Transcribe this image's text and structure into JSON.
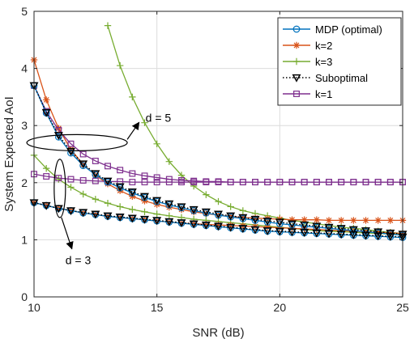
{
  "chart_data": {
    "type": "line",
    "title": "",
    "xlabel": "SNR (dB)",
    "ylabel": "System Expected AoI",
    "xlim": [
      10,
      25
    ],
    "ylim": [
      0,
      5
    ],
    "xticks": [
      10,
      15,
      20,
      25
    ],
    "yticks": [
      0,
      1,
      2,
      3,
      4,
      5
    ],
    "grid": true,
    "legend_position": "top-right",
    "x": [
      10,
      10.5,
      11,
      11.5,
      12,
      12.5,
      13,
      13.5,
      14,
      14.5,
      15,
      15.5,
      16,
      16.5,
      17,
      17.5,
      18,
      18.5,
      19,
      19.5,
      20,
      20.5,
      21,
      21.5,
      22,
      22.5,
      23,
      23.5,
      24,
      24.5,
      25
    ],
    "series": [
      {
        "name": "MDP (optimal)",
        "color": "#0072BD",
        "marker": "circle",
        "dash": "solid",
        "groups": [
          [
            3.7,
            3.22,
            2.8,
            2.52,
            2.3,
            2.14,
            2.01,
            1.91,
            1.82,
            1.74,
            1.67,
            1.61,
            1.56,
            1.51,
            1.47,
            1.43,
            1.4,
            1.37,
            1.34,
            1.31,
            1.28,
            1.26,
            1.24,
            1.22,
            1.2,
            1.18,
            1.16,
            1.14,
            1.12,
            1.1,
            1.08
          ],
          [
            1.65,
            1.6,
            1.55,
            1.51,
            1.47,
            1.44,
            1.41,
            1.39,
            1.37,
            1.35,
            1.33,
            1.31,
            1.29,
            1.27,
            1.25,
            1.23,
            1.21,
            1.19,
            1.17,
            1.15,
            1.14,
            1.13,
            1.12,
            1.11,
            1.1,
            1.09,
            1.08,
            1.07,
            1.06,
            1.05,
            1.04
          ]
        ]
      },
      {
        "name": "k=2",
        "color": "#D95319",
        "marker": "asterisk",
        "dash": "solid",
        "groups": [
          [
            4.15,
            3.45,
            2.95,
            2.58,
            2.32,
            2.13,
            1.98,
            1.86,
            1.76,
            1.68,
            1.62,
            1.57,
            1.53,
            1.49,
            1.46,
            1.43,
            1.41,
            1.39,
            1.38,
            1.37,
            1.36,
            1.35,
            1.35,
            1.35,
            1.34,
            1.34,
            1.34,
            1.34,
            1.34,
            1.34,
            1.34
          ],
          [
            1.65,
            1.6,
            1.55,
            1.51,
            1.47,
            1.44,
            1.41,
            1.39,
            1.37,
            1.35,
            1.33,
            1.31,
            1.29,
            1.28,
            1.27,
            1.26,
            1.25,
            1.24,
            1.23,
            1.22,
            1.21,
            1.2,
            1.19,
            1.18,
            1.17,
            1.16,
            1.15,
            1.14,
            1.13,
            1.12,
            1.11
          ]
        ]
      },
      {
        "name": "k=3",
        "color": "#77AC30",
        "marker": "plus",
        "dash": "solid",
        "groups": [
          [
            null,
            null,
            null,
            null,
            null,
            null,
            4.75,
            4.05,
            3.5,
            3.05,
            2.68,
            2.37,
            2.13,
            1.94,
            1.79,
            1.67,
            1.58,
            1.51,
            1.46,
            1.42,
            1.38,
            1.34,
            1.31,
            1.28,
            1.25,
            1.22,
            1.2,
            1.18,
            1.15,
            1.13,
            1.11
          ],
          [
            2.48,
            2.25,
            2.06,
            1.92,
            1.8,
            1.71,
            1.64,
            1.58,
            1.53,
            1.49,
            1.45,
            1.42,
            1.39,
            1.36,
            1.34,
            1.32,
            1.3,
            1.28,
            1.26,
            1.24,
            1.22,
            1.2,
            1.18,
            1.16,
            1.15,
            1.14,
            1.13,
            1.12,
            1.11,
            1.1,
            1.09
          ]
        ]
      },
      {
        "name": "Suboptimal",
        "color": "#000000",
        "marker": "triangle-down",
        "dash": "dotted",
        "groups": [
          [
            3.7,
            3.23,
            2.83,
            2.55,
            2.33,
            2.16,
            2.03,
            1.93,
            1.84,
            1.76,
            1.69,
            1.63,
            1.58,
            1.53,
            1.49,
            1.45,
            1.42,
            1.39,
            1.36,
            1.33,
            1.31,
            1.28,
            1.26,
            1.24,
            1.22,
            1.2,
            1.18,
            1.16,
            1.14,
            1.12,
            1.1
          ],
          [
            1.65,
            1.6,
            1.55,
            1.51,
            1.48,
            1.45,
            1.42,
            1.4,
            1.38,
            1.36,
            1.34,
            1.32,
            1.3,
            1.28,
            1.26,
            1.24,
            1.22,
            1.2,
            1.18,
            1.16,
            1.15,
            1.14,
            1.13,
            1.12,
            1.11,
            1.1,
            1.09,
            1.08,
            1.07,
            1.06,
            1.05
          ]
        ]
      },
      {
        "name": "k=1",
        "color": "#7E2F8E",
        "marker": "square",
        "dash": "solid",
        "groups": [
          [
            3.7,
            3.25,
            2.92,
            2.68,
            2.5,
            2.38,
            2.29,
            2.22,
            2.16,
            2.12,
            2.09,
            2.06,
            2.04,
            2.03,
            2.02,
            2.02,
            2.01,
            2.01,
            2.01,
            2.01,
            2.01,
            2.01,
            2.01,
            2.01,
            2.01,
            2.01,
            2.01,
            2.01,
            2.01,
            2.01,
            2.01
          ],
          [
            2.15,
            2.11,
            2.08,
            2.06,
            2.04,
            2.03,
            2.02,
            2.02,
            2.01,
            2.01,
            2.01,
            2.01,
            2.01,
            2.01,
            2.01,
            2.01,
            2.01,
            2.01,
            2.01,
            2.01,
            2.01,
            2.01,
            2.01,
            2.01,
            2.01,
            2.01,
            2.01,
            2.01,
            2.01,
            2.01,
            2.01
          ]
        ]
      }
    ],
    "annotations": [
      {
        "text": "d = 5",
        "ellipse_center": [
          11.75,
          2.7
        ],
        "arrow_to": [
          15.0,
          2.8
        ]
      },
      {
        "text": "d = 3",
        "ellipse_center": [
          11.05,
          1.9
        ],
        "arrow_to": [
          12.2,
          0.6
        ]
      }
    ]
  }
}
